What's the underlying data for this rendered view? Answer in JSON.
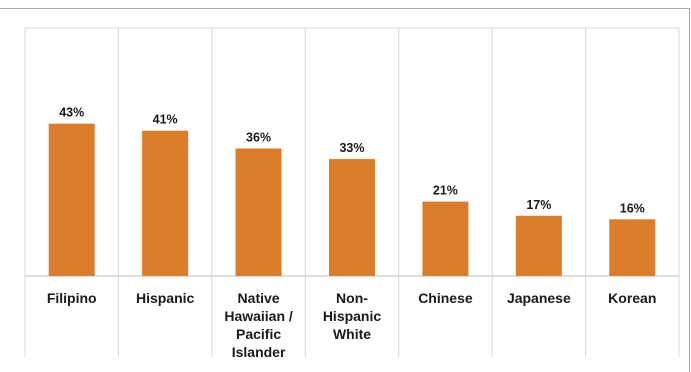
{
  "chart_data": {
    "type": "bar",
    "categories": [
      [
        "Filipino"
      ],
      [
        "Hispanic"
      ],
      [
        "Native",
        "Hawaiian /",
        "Pacific",
        "Islander"
      ],
      [
        "Non-",
        "Hispanic",
        "White"
      ],
      [
        "Chinese"
      ],
      [
        "Japanese"
      ],
      [
        "Korean"
      ]
    ],
    "values": [
      43,
      41,
      36,
      33,
      21,
      17,
      16
    ],
    "value_labels": [
      "43%",
      "41%",
      "36%",
      "33%",
      "21%",
      "17%",
      "16%"
    ],
    "ylim": [
      0,
      70
    ],
    "colors": {
      "bar": "#db7c2b",
      "grid": "#d9d9d9",
      "frame": "#a9a9a9"
    },
    "grid": "vertical category separators"
  }
}
